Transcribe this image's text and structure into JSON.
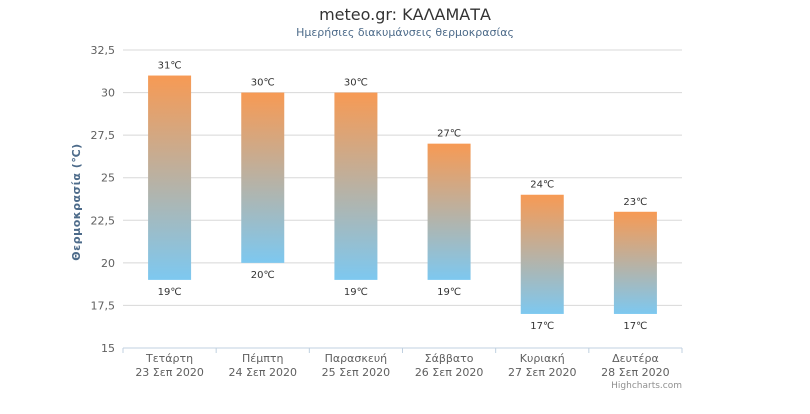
{
  "chart_data": {
    "type": "bar",
    "title": "meteo.gr: ΚΑΛΑΜΑΤΑ",
    "subtitle": "Ημερήσιες διακυμάνσεις θερμοκρασίας",
    "ylabel": "Θερμοκρασία (℃)",
    "xlabel": "",
    "ylim": [
      15,
      32.5
    ],
    "yticks": [
      "15",
      "17,5",
      "20",
      "22,5",
      "25",
      "27,5",
      "30",
      "32,5"
    ],
    "ytick_values": [
      15,
      17.5,
      20,
      22.5,
      25,
      27.5,
      30,
      32.5
    ],
    "grid": true,
    "categories": [
      [
        "Τετάρτη",
        "23 Σεπ 2020"
      ],
      [
        "Πέμπτη",
        "24 Σεπ 2020"
      ],
      [
        "Παρασκευή",
        "25 Σεπ 2020"
      ],
      [
        "Σάββατο",
        "26 Σεπ 2020"
      ],
      [
        "Κυριακή",
        "27 Σεπ 2020"
      ],
      [
        "Δευτέρα",
        "28 Σεπ 2020"
      ]
    ],
    "series": [
      {
        "low": [
          19,
          20,
          19,
          19,
          17,
          17
        ],
        "high": [
          31,
          30,
          30,
          27,
          24,
          23
        ],
        "low_labels": [
          "19℃",
          "20℃",
          "19℃",
          "19℃",
          "17℃",
          "17℃"
        ],
        "high_labels": [
          "31℃",
          "30℃",
          "30℃",
          "27℃",
          "24℃",
          "23℃"
        ]
      }
    ],
    "colors": {
      "top": "#f79a54",
      "bottom": "#7dc8f0"
    },
    "credits": "Highcharts.com"
  }
}
